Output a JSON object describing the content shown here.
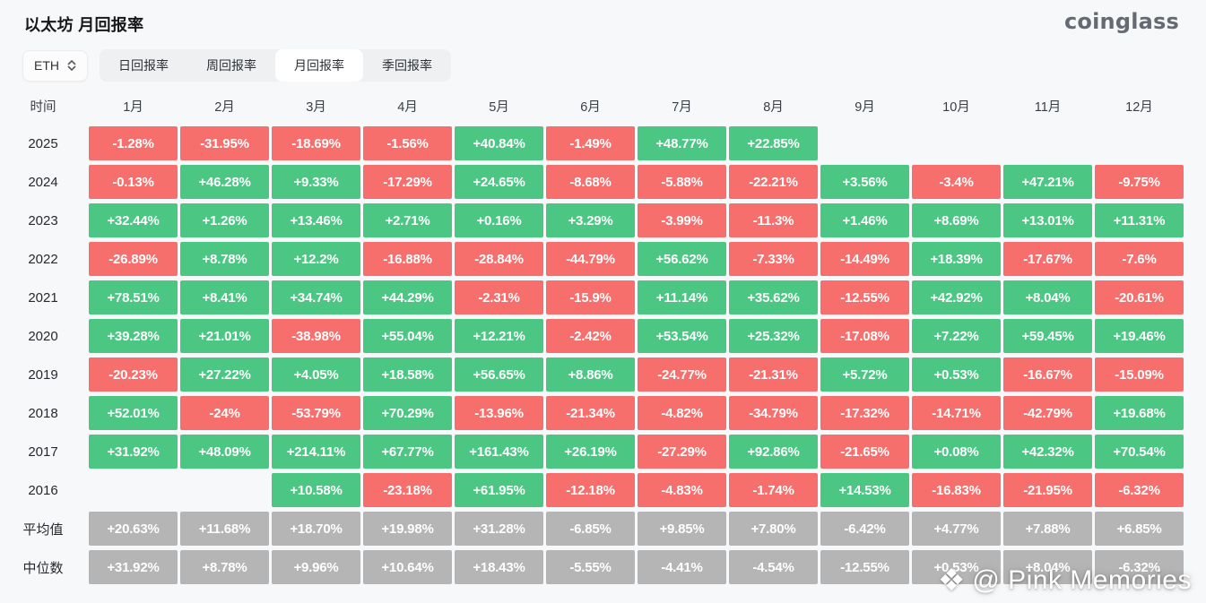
{
  "page": {
    "title": "以太坊 月回报率",
    "logo": "coinglass",
    "watermark": "@ Pink Memories"
  },
  "toolbar": {
    "coin_selector": {
      "value": "ETH"
    },
    "tabs": [
      {
        "label": "日回报率",
        "active": false
      },
      {
        "label": "周回报率",
        "active": false
      },
      {
        "label": "月回报率",
        "active": true
      },
      {
        "label": "季回报率",
        "active": false
      }
    ]
  },
  "table": {
    "corner_header": "时间",
    "month_headers": [
      "1月",
      "2月",
      "3月",
      "4月",
      "5月",
      "6月",
      "7月",
      "8月",
      "9月",
      "10月",
      "11月",
      "12月"
    ],
    "rows": [
      {
        "label": "2025",
        "type": "year",
        "cells": [
          "-1.28%",
          "-31.95%",
          "-18.69%",
          "-1.56%",
          "+40.84%",
          "-1.49%",
          "+48.77%",
          "+22.85%",
          null,
          null,
          null,
          null
        ]
      },
      {
        "label": "2024",
        "type": "year",
        "cells": [
          "-0.13%",
          "+46.28%",
          "+9.33%",
          "-17.29%",
          "+24.65%",
          "-8.68%",
          "-5.88%",
          "-22.21%",
          "+3.56%",
          "-3.4%",
          "+47.21%",
          "-9.75%"
        ]
      },
      {
        "label": "2023",
        "type": "year",
        "cells": [
          "+32.44%",
          "+1.26%",
          "+13.46%",
          "+2.71%",
          "+0.16%",
          "+3.29%",
          "-3.99%",
          "-11.3%",
          "+1.46%",
          "+8.69%",
          "+13.01%",
          "+11.31%"
        ]
      },
      {
        "label": "2022",
        "type": "year",
        "cells": [
          "-26.89%",
          "+8.78%",
          "+12.2%",
          "-16.88%",
          "-28.84%",
          "-44.79%",
          "+56.62%",
          "-7.33%",
          "-14.49%",
          "+18.39%",
          "-17.67%",
          "-7.6%"
        ]
      },
      {
        "label": "2021",
        "type": "year",
        "cells": [
          "+78.51%",
          "+8.41%",
          "+34.74%",
          "+44.29%",
          "-2.31%",
          "-15.9%",
          "+11.14%",
          "+35.62%",
          "-12.55%",
          "+42.92%",
          "+8.04%",
          "-20.61%"
        ]
      },
      {
        "label": "2020",
        "type": "year",
        "cells": [
          "+39.28%",
          "+21.01%",
          "-38.98%",
          "+55.04%",
          "+12.21%",
          "-2.42%",
          "+53.54%",
          "+25.32%",
          "-17.08%",
          "+7.22%",
          "+59.45%",
          "+19.46%"
        ]
      },
      {
        "label": "2019",
        "type": "year",
        "cells": [
          "-20.23%",
          "+27.22%",
          "+4.05%",
          "+18.58%",
          "+56.65%",
          "+8.86%",
          "-24.77%",
          "-21.31%",
          "+5.72%",
          "+0.53%",
          "-16.67%",
          "-15.09%"
        ]
      },
      {
        "label": "2018",
        "type": "year",
        "cells": [
          "+52.01%",
          "-24%",
          "-53.79%",
          "+70.29%",
          "-13.96%",
          "-21.34%",
          "-4.82%",
          "-34.79%",
          "-17.32%",
          "-14.71%",
          "-42.79%",
          "+19.68%"
        ]
      },
      {
        "label": "2017",
        "type": "year",
        "cells": [
          "+31.92%",
          "+48.09%",
          "+214.11%",
          "+67.77%",
          "+161.43%",
          "+26.19%",
          "-27.29%",
          "+92.86%",
          "-21.65%",
          "+0.08%",
          "+42.32%",
          "+70.54%"
        ]
      },
      {
        "label": "2016",
        "type": "year",
        "cells": [
          null,
          null,
          "+10.58%",
          "-23.18%",
          "+61.95%",
          "-12.18%",
          "-4.83%",
          "-1.74%",
          "+14.53%",
          "-16.83%",
          "-21.95%",
          "-6.32%"
        ]
      },
      {
        "label": "平均值",
        "type": "summary",
        "cells": [
          "+20.63%",
          "+11.68%",
          "+18.70%",
          "+19.98%",
          "+31.28%",
          "-6.85%",
          "+9.85%",
          "+7.80%",
          "-6.42%",
          "+4.77%",
          "+7.88%",
          "+6.85%"
        ]
      },
      {
        "label": "中位数",
        "type": "summary",
        "cells": [
          "+31.92%",
          "+8.78%",
          "+9.96%",
          "+10.64%",
          "+18.43%",
          "-5.55%",
          "-4.41%",
          "-4.54%",
          "-12.55%",
          "+0.53%",
          "+8.04%",
          "-6.32%"
        ]
      }
    ]
  },
  "colors": {
    "positive": "#4bc783",
    "negative": "#f76f6d",
    "summary": "#b5b5b6"
  }
}
